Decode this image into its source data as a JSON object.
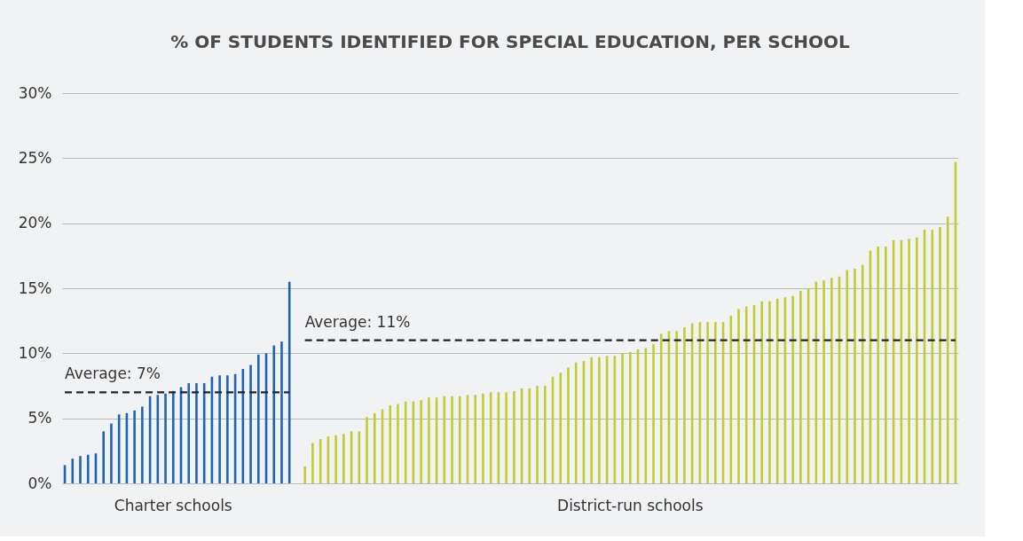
{
  "chart_data": {
    "type": "bar",
    "title": "% OF STUDENTS IDENTIFIED FOR SPECIAL EDUCATION, PER SCHOOL",
    "categories": [
      null,
      null,
      null,
      null,
      null,
      null,
      null,
      null,
      null,
      null,
      null,
      null,
      null,
      null,
      null,
      null,
      null,
      null,
      null,
      null,
      null,
      null,
      null,
      null,
      null,
      null,
      null,
      null,
      null,
      null,
      null,
      null,
      null,
      null,
      null,
      null,
      null,
      null,
      null,
      null,
      null,
      null,
      null,
      null,
      null,
      null,
      null,
      null,
      null,
      null,
      null,
      null,
      null,
      null,
      null,
      null,
      null,
      null,
      null,
      null,
      null,
      null,
      null,
      null,
      null,
      null,
      null,
      null,
      null,
      null,
      null,
      null,
      null,
      null,
      null,
      null,
      null,
      null,
      null,
      null,
      null,
      null,
      null,
      null,
      null,
      null,
      null,
      null,
      null,
      null,
      null,
      null,
      null,
      null,
      null,
      null,
      null,
      null,
      null,
      null,
      null,
      null,
      null,
      null,
      null,
      null,
      null,
      null,
      null,
      null,
      null,
      null,
      null,
      null,
      null,
      null
    ],
    "series": [
      {
        "name": "Charter schools",
        "color": "#1f64b4",
        "values": [
          1.4,
          1.9,
          2.1,
          2.2,
          2.3,
          4.0,
          4.6,
          5.3,
          5.4,
          5.6,
          5.9,
          6.7,
          6.8,
          6.9,
          7.1,
          7.4,
          7.7,
          7.7,
          7.7,
          8.2,
          8.3,
          8.3,
          8.4,
          8.8,
          9.1,
          9.9,
          10.0,
          10.6,
          10.9,
          15.5,
          null,
          null,
          null,
          null,
          null,
          null,
          null,
          null,
          null,
          null,
          null,
          null,
          null,
          null,
          null,
          null,
          null,
          null,
          null,
          null,
          null,
          null,
          null,
          null,
          null,
          null,
          null,
          null,
          null,
          null,
          null,
          null,
          null,
          null,
          null,
          null,
          null,
          null,
          null,
          null,
          null,
          null,
          null,
          null,
          null,
          null,
          null,
          null,
          null,
          null,
          null,
          null,
          null,
          null,
          null,
          null,
          null,
          null,
          null,
          null,
          null,
          null,
          null,
          null,
          null,
          null,
          null,
          null,
          null,
          null,
          null,
          null,
          null,
          null,
          null,
          null,
          null,
          null,
          null,
          null,
          null,
          null,
          null,
          null,
          null,
          null
        ]
      },
      {
        "name": "District-run schools",
        "color": "#c2cc2c",
        "values": [
          null,
          null,
          null,
          null,
          null,
          null,
          null,
          null,
          null,
          null,
          null,
          null,
          null,
          null,
          null,
          null,
          null,
          null,
          null,
          null,
          null,
          null,
          null,
          null,
          null,
          null,
          null,
          null,
          null,
          null,
          null,
          1.3,
          3.1,
          3.4,
          3.6,
          3.7,
          3.8,
          4.0,
          4.0,
          5.1,
          5.4,
          5.7,
          6.0,
          6.1,
          6.3,
          6.3,
          6.4,
          6.6,
          6.6,
          6.7,
          6.7,
          6.7,
          6.8,
          6.8,
          6.9,
          7.0,
          7.0,
          7.0,
          7.1,
          7.3,
          7.3,
          7.5,
          7.5,
          8.2,
          8.5,
          8.9,
          9.3,
          9.4,
          9.7,
          9.7,
          9.8,
          9.8,
          10.0,
          10.1,
          10.3,
          10.4,
          10.7,
          11.5,
          11.7,
          11.7,
          12.0,
          12.3,
          12.4,
          12.4,
          12.4,
          12.4,
          12.9,
          13.4,
          13.6,
          13.7,
          14.0,
          14.0,
          14.2,
          14.3,
          14.4,
          14.8,
          15.0,
          15.5,
          15.6,
          15.8,
          15.9,
          16.4,
          16.5,
          16.8,
          17.9,
          18.2,
          18.2,
          18.7,
          18.7,
          18.8,
          18.9,
          19.5,
          19.5,
          19.7,
          20.5,
          24.7
        ]
      }
    ],
    "ylim": [
      0,
      30
    ],
    "yticks": [
      {
        "value": 0,
        "label": "0%"
      },
      {
        "value": 5,
        "label": "5%"
      },
      {
        "value": 10,
        "label": "10%"
      },
      {
        "value": 15,
        "label": "15%"
      },
      {
        "value": 20,
        "label": "20%"
      },
      {
        "value": 25,
        "label": "25%"
      },
      {
        "value": 30,
        "label": "30%"
      }
    ],
    "grid": "y",
    "ref_lines": [
      {
        "axis": "y",
        "value": 7,
        "label": "Average: 7%",
        "color": "#222222",
        "line_style": "dashed"
      },
      {
        "axis": "y",
        "value": 11,
        "label": "Average: 11%",
        "color": "#222222",
        "line_style": "dashed"
      }
    ]
  }
}
